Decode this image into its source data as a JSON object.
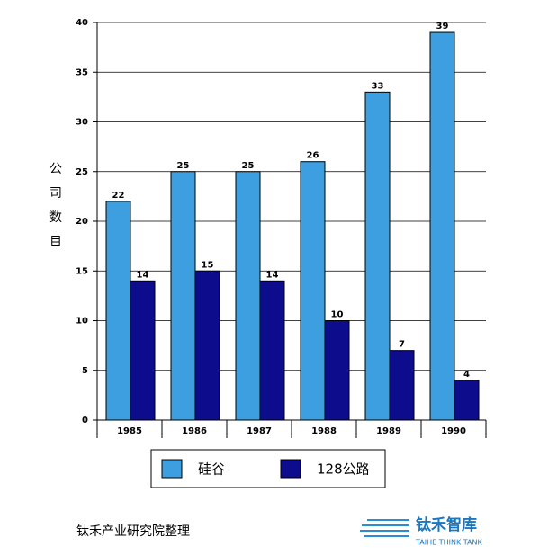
{
  "chart_data": {
    "type": "bar",
    "y_label": [
      "公",
      "司",
      "数",
      "目"
    ],
    "categories": [
      "1985",
      "1986",
      "1987",
      "1988",
      "1989",
      "1990"
    ],
    "series": [
      {
        "name": "硅谷",
        "color": "#3d9fe0",
        "values": [
          22,
          25,
          25,
          26,
          33,
          39
        ]
      },
      {
        "name": "128公路",
        "color": "#0c0c8c",
        "values": [
          14,
          15,
          14,
          10,
          7,
          4
        ]
      }
    ],
    "ylim": [
      0,
      40
    ],
    "yticks": [
      0,
      5,
      10,
      15,
      20,
      25,
      30,
      35,
      40
    ],
    "grid": true
  },
  "footer": {
    "source": "钛禾产业研究院整理",
    "logo_title": "钛禾智库",
    "logo_subtitle": "TAIHE THINK TANK"
  }
}
